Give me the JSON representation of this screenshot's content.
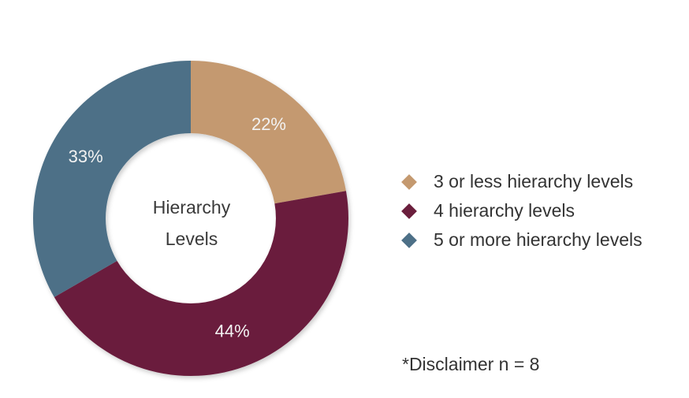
{
  "chart_data": {
    "type": "donut",
    "center_label": [
      "Hierarchy",
      "Levels"
    ],
    "categories": [
      "3 or less hierarchy levels",
      "4 hierarchy levels",
      "5 or more hierarchy levels"
    ],
    "values": [
      22,
      44,
      33
    ],
    "value_labels": [
      "22%",
      "44%",
      "33%"
    ],
    "colors": [
      "#c4996f",
      "#6b1f3d",
      "#4d7087"
    ],
    "legend": "right",
    "disclaimer": "*Disclaimer n = 8"
  }
}
